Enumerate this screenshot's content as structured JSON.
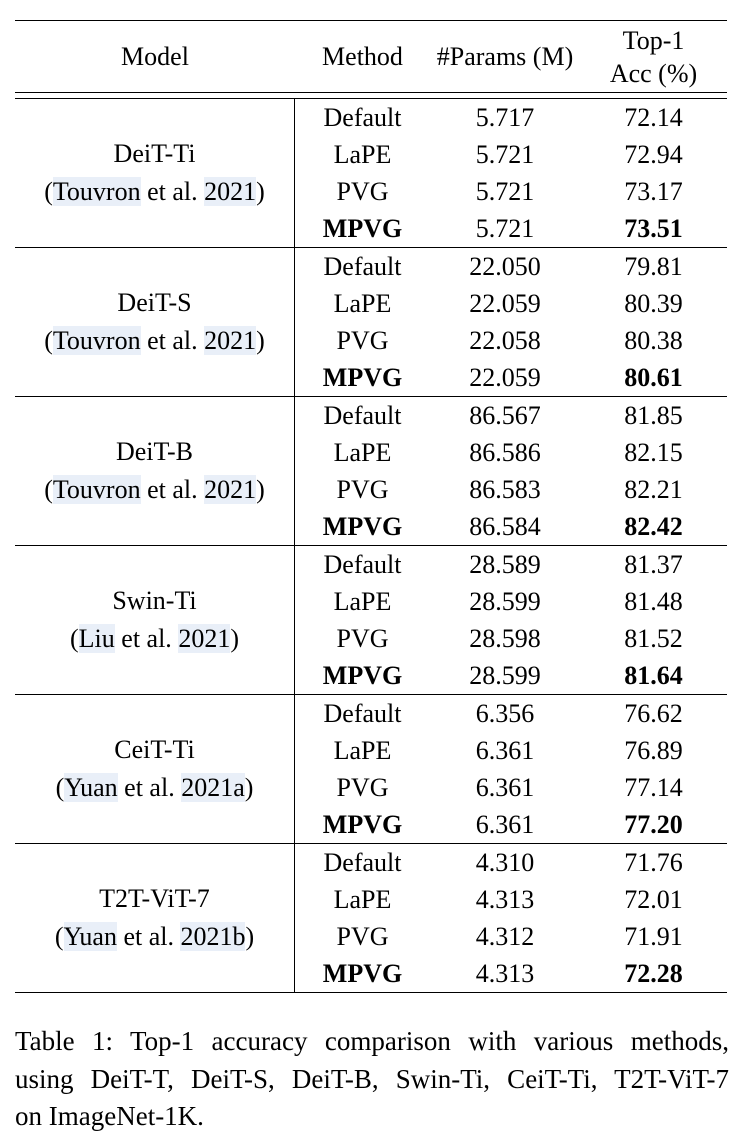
{
  "table": {
    "headers": {
      "model": "Model",
      "method": "Method",
      "params": "#Params (M)",
      "acc_line1": "Top-1",
      "acc_line2": "Acc (%)"
    },
    "groups": [
      {
        "model": "DeiT-Ti",
        "cite": {
          "open": "(",
          "name": "Touvron",
          "mid": " et al. ",
          "year": "2021",
          "close": ")"
        },
        "rows": [
          {
            "method": "Default",
            "params": "5.717",
            "acc": "72.14",
            "bold": false
          },
          {
            "method": "LaPE",
            "params": "5.721",
            "acc": "72.94",
            "bold": false
          },
          {
            "method": "PVG",
            "params": "5.721",
            "acc": "73.17",
            "bold": false
          },
          {
            "method": "MPVG",
            "params": "5.721",
            "acc": "73.51",
            "bold": true
          }
        ]
      },
      {
        "model": "DeiT-S",
        "cite": {
          "open": "(",
          "name": "Touvron",
          "mid": " et al. ",
          "year": "2021",
          "close": ")"
        },
        "rows": [
          {
            "method": "Default",
            "params": "22.050",
            "acc": "79.81",
            "bold": false
          },
          {
            "method": "LaPE",
            "params": "22.059",
            "acc": "80.39",
            "bold": false
          },
          {
            "method": "PVG",
            "params": "22.058",
            "acc": "80.38",
            "bold": false
          },
          {
            "method": "MPVG",
            "params": "22.059",
            "acc": "80.61",
            "bold": true
          }
        ]
      },
      {
        "model": "DeiT-B",
        "cite": {
          "open": "(",
          "name": "Touvron",
          "mid": " et al. ",
          "year": "2021",
          "close": ")"
        },
        "rows": [
          {
            "method": "Default",
            "params": "86.567",
            "acc": "81.85",
            "bold": false
          },
          {
            "method": "LaPE",
            "params": "86.586",
            "acc": "82.15",
            "bold": false
          },
          {
            "method": "PVG",
            "params": "86.583",
            "acc": "82.21",
            "bold": false
          },
          {
            "method": "MPVG",
            "params": "86.584",
            "acc": "82.42",
            "bold": true
          }
        ]
      },
      {
        "model": "Swin-Ti",
        "cite": {
          "open": "(",
          "name": "Liu",
          "mid": " et al. ",
          "year": "2021",
          "close": ")"
        },
        "rows": [
          {
            "method": "Default",
            "params": "28.589",
            "acc": "81.37",
            "bold": false
          },
          {
            "method": "LaPE",
            "params": "28.599",
            "acc": "81.48",
            "bold": false
          },
          {
            "method": "PVG",
            "params": "28.598",
            "acc": "81.52",
            "bold": false
          },
          {
            "method": "MPVG",
            "params": "28.599",
            "acc": "81.64",
            "bold": true
          }
        ]
      },
      {
        "model": "CeiT-Ti",
        "cite": {
          "open": "(",
          "name": "Yuan",
          "mid": " et al. ",
          "year": "2021a",
          "close": ")"
        },
        "rows": [
          {
            "method": "Default",
            "params": "6.356",
            "acc": "76.62",
            "bold": false
          },
          {
            "method": "LaPE",
            "params": "6.361",
            "acc": "76.89",
            "bold": false
          },
          {
            "method": "PVG",
            "params": "6.361",
            "acc": "77.14",
            "bold": false
          },
          {
            "method": "MPVG",
            "params": "6.361",
            "acc": "77.20",
            "bold": true
          }
        ]
      },
      {
        "model": "T2T-ViT-7",
        "cite": {
          "open": "(",
          "name": "Yuan",
          "mid": " et al. ",
          "year": "2021b",
          "close": ")"
        },
        "rows": [
          {
            "method": "Default",
            "params": "4.310",
            "acc": "71.76",
            "bold": false
          },
          {
            "method": "LaPE",
            "params": "4.313",
            "acc": "72.01",
            "bold": false
          },
          {
            "method": "PVG",
            "params": "4.312",
            "acc": "71.91",
            "bold": false
          },
          {
            "method": "MPVG",
            "params": "4.313",
            "acc": "72.28",
            "bold": true
          }
        ]
      }
    ]
  },
  "caption": {
    "lines": [
      "Table 1: Top-1 accuracy comparison with various methods,",
      "using DeiT-T, DeiT-S, DeiT-B, Swin-Ti, CeiT-Ti, T2T-ViT-7",
      "on ImageNet-1K."
    ]
  },
  "colors": {
    "text": "#000000",
    "rule": "#000000",
    "citation_link_highlight": "#e9eff8",
    "background": "#ffffff"
  }
}
